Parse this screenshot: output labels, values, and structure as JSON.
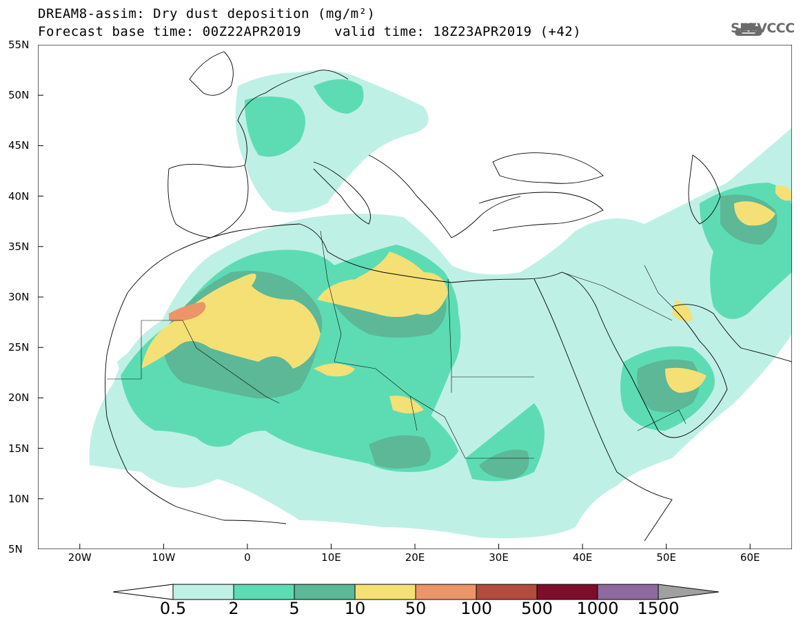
{
  "title": {
    "line1": "DREAM8-assim: Dry dust deposition (mg/m²)",
    "line2": "Forecast base time: 00Z22APR2019",
    "valid": "valid time: 18Z23APR2019 (+42)"
  },
  "logo": {
    "text": "SEEVCCC",
    "icon": "cloud-logo-icon"
  },
  "axes": {
    "lat_labels": [
      "55N",
      "50N",
      "45N",
      "40N",
      "35N",
      "30N",
      "25N",
      "20N",
      "15N",
      "10N",
      "5N"
    ],
    "lon_labels": [
      "20W",
      "10W",
      "0",
      "10E",
      "20E",
      "30E",
      "40E",
      "50E",
      "60E"
    ],
    "lat_range": [
      5,
      55
    ],
    "lon_range": [
      -25,
      65
    ]
  },
  "legend": {
    "labels": [
      "0.5",
      "2",
      "5",
      "10",
      "50",
      "100",
      "500",
      "1000",
      "1500"
    ],
    "colors": [
      "#ffffff",
      "#bff0e6",
      "#5ddcb4",
      "#5cb896",
      "#f5e076",
      "#eb9568",
      "#b24c3e",
      "#7c0e2c",
      "#8f6a9e",
      "#a0a0a0"
    ]
  },
  "colors": {
    "land_outline": "#000000",
    "sea": "#ffffff"
  }
}
